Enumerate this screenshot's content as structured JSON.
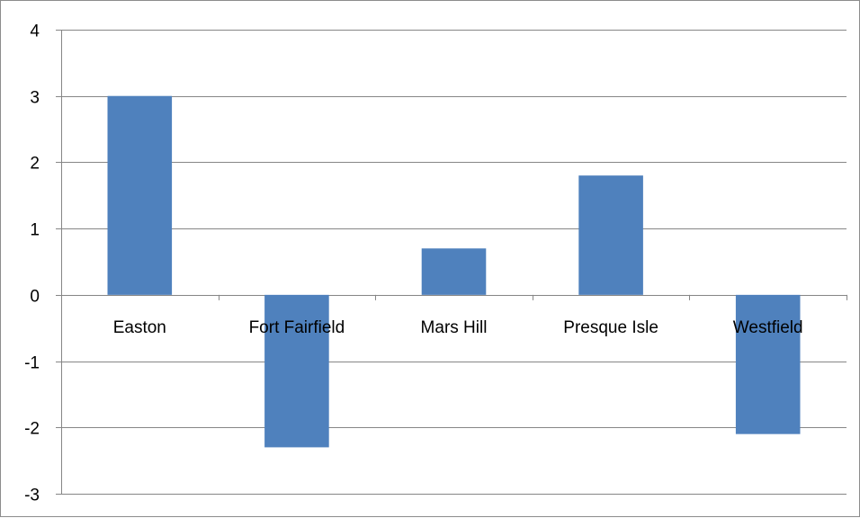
{
  "chart_data": {
    "type": "bar",
    "title": "",
    "xlabel": "",
    "ylabel": "",
    "categories": [
      "Easton",
      "Fort Fairfield",
      "Mars Hill",
      "Presque Isle",
      "Westfield"
    ],
    "values": [
      3.0,
      -2.3,
      0.7,
      1.8,
      -2.1
    ],
    "ylim": [
      -3,
      4
    ],
    "yticks": [
      4,
      3,
      2,
      1,
      0,
      -1,
      -2,
      -3
    ],
    "ytick_labels": [
      "4",
      "3",
      "2",
      "1",
      "0",
      "-1",
      "-2",
      "-3"
    ],
    "grid": true,
    "legend": "none",
    "bar_color": "#4F81BD",
    "grid_color": "#868686"
  }
}
